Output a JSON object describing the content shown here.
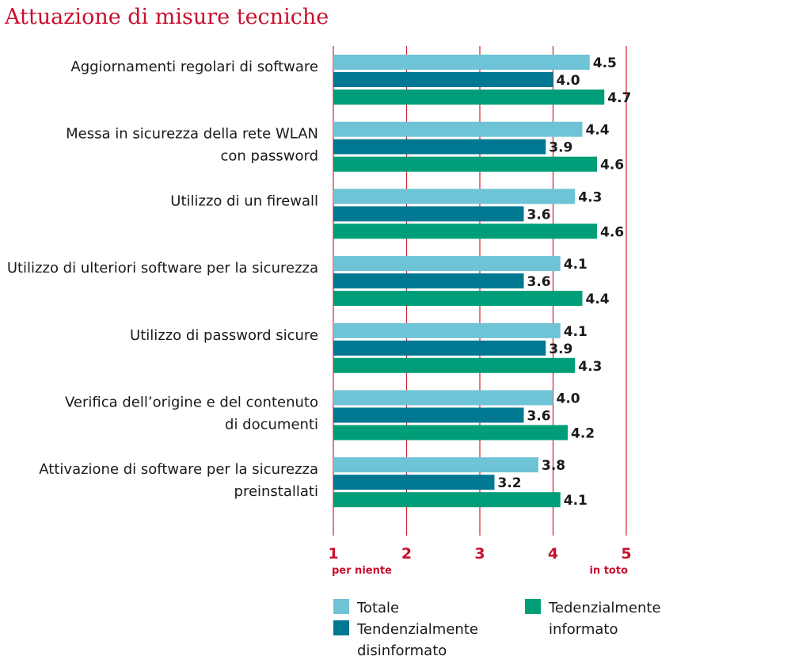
{
  "chart_data": {
    "type": "bar",
    "orientation": "horizontal",
    "title": "Attuazione di misure tecniche",
    "categories": [
      [
        "Aggiornamenti regolari di software"
      ],
      [
        "Messa in sicurezza della rete WLAN",
        "con password"
      ],
      [
        "Utilizzo di un firewall"
      ],
      [
        "Utilizzo di ulteriori software per la sicurezza"
      ],
      [
        "Utilizzo di password sicure"
      ],
      [
        "Verifica dell’origine e del contenuto",
        "di documenti"
      ],
      [
        "Attivazione di software per la sicurezza",
        "preinstallati"
      ]
    ],
    "series": [
      {
        "name": "Totale",
        "color": "#6ec3d6",
        "values": [
          4.5,
          4.4,
          4.3,
          4.1,
          4.1,
          4.0,
          3.8
        ]
      },
      {
        "name": "Tendenzialmente disinformato",
        "color": "#007891",
        "values": [
          4.0,
          3.9,
          3.6,
          3.6,
          3.9,
          3.6,
          3.2
        ]
      },
      {
        "name": "Tedenzialmente informato",
        "color": "#009e78",
        "values": [
          4.7,
          4.6,
          4.6,
          4.4,
          4.3,
          4.2,
          4.1
        ]
      }
    ],
    "value_labels": [
      [
        "4.5",
        "4.0",
        "4.7"
      ],
      [
        "4.4",
        "3.9",
        "4.6"
      ],
      [
        "4.3",
        "3.6",
        "4.6"
      ],
      [
        "4.1",
        "3.6",
        "4.4"
      ],
      [
        "4.1",
        "3.9",
        "4.3"
      ],
      [
        "4.0",
        "3.6",
        "4.2"
      ],
      [
        "3.8",
        "3.2",
        "4.1"
      ]
    ],
    "xlim": [
      1,
      5
    ],
    "xticks": [
      1,
      2,
      3,
      4,
      5
    ],
    "xtick_labels": [
      "1",
      "2",
      "3",
      "4",
      "5"
    ],
    "xtick_min_label": "per niente",
    "xtick_max_label": "in toto",
    "grid": true,
    "legend": {
      "placement": "bottom",
      "entries": [
        {
          "lines": [
            "Totale"
          ],
          "color": "#6ec3d6"
        },
        {
          "lines": [
            "Tendenzialmente",
            "disinformato"
          ],
          "color": "#007891"
        },
        {
          "lines": [
            "Tedenzialmente",
            "informato"
          ],
          "color": "#009e78"
        }
      ]
    }
  }
}
